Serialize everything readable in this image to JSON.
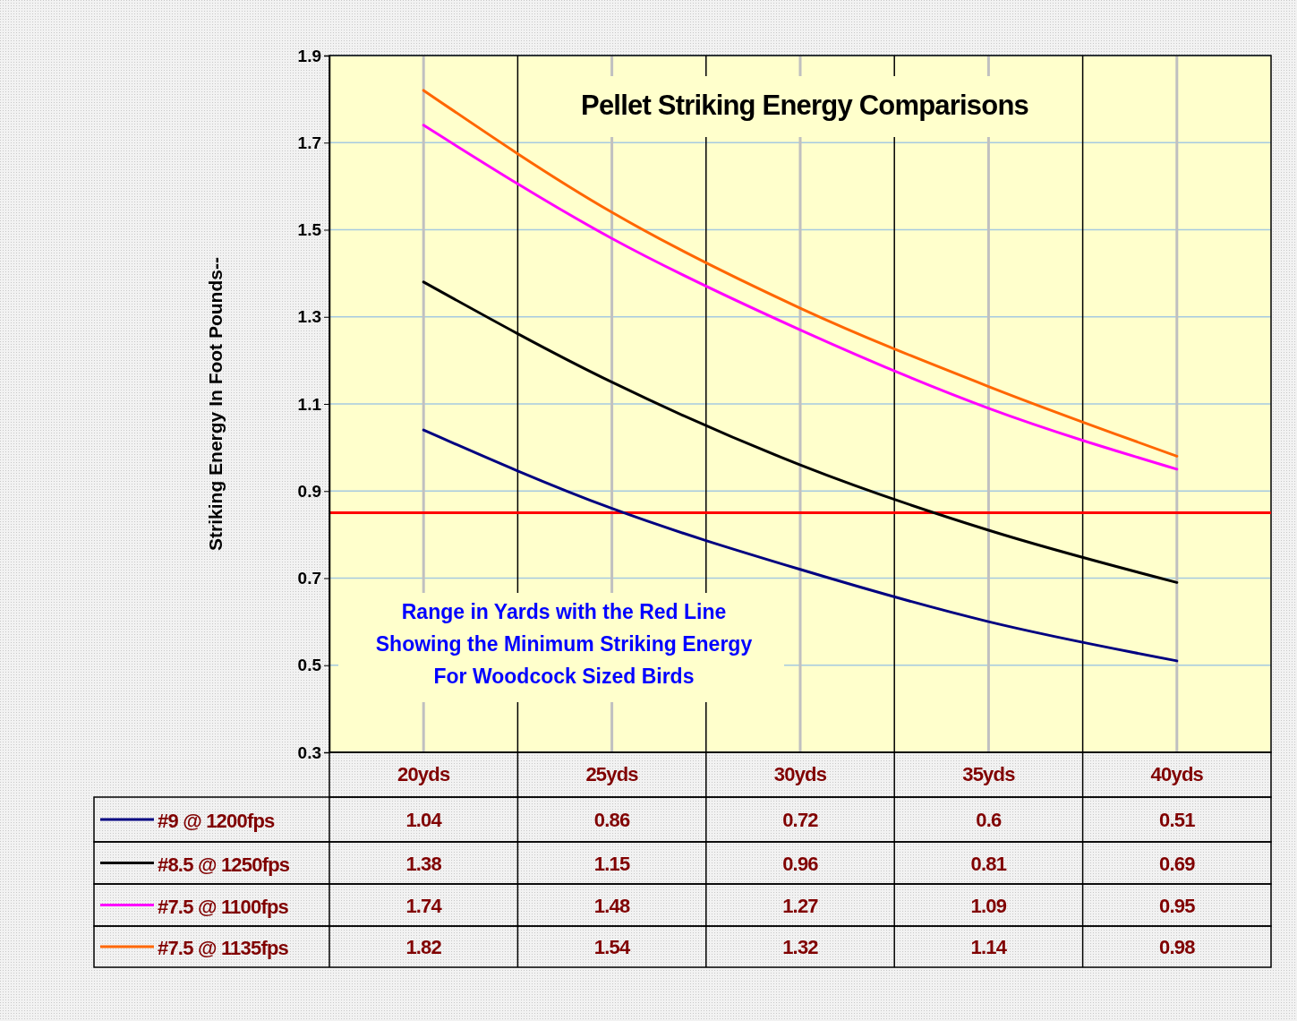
{
  "chart_data": {
    "type": "line",
    "title": "Pellet Striking Energy Comparisons",
    "ylabel": "Striking Energy In Foot Pounds--",
    "categories": [
      "20yds",
      "25yds",
      "30yds",
      "35yds",
      "40yds"
    ],
    "series": [
      {
        "name": "#9 @ 1200fps",
        "color": "#000080",
        "values": [
          1.04,
          0.86,
          0.72,
          0.6,
          0.51
        ]
      },
      {
        "name": "#8.5 @ 1250fps",
        "color": "#000000",
        "values": [
          1.38,
          1.15,
          0.96,
          0.81,
          0.69
        ]
      },
      {
        "name": "#7.5 @ 1100fps",
        "color": "#ff00ff",
        "values": [
          1.74,
          1.48,
          1.27,
          1.09,
          0.95
        ]
      },
      {
        "name": "#7.5 @ 1135fps",
        "color": "#ff6600",
        "values": [
          1.82,
          1.54,
          1.32,
          1.14,
          0.98
        ]
      }
    ],
    "ylim": [
      0.3,
      1.9
    ],
    "yticks": [
      0.3,
      0.5,
      0.7,
      0.9,
      1.1,
      1.3,
      1.5,
      1.7,
      1.9
    ],
    "ref_lines": [
      {
        "axis": "y",
        "value": 0.85,
        "color": "#ff0000"
      }
    ],
    "annotations": [
      "Range in Yards with the Red Line\nShowing the Minimum Striking Energy\nFor Woodcock Sized Birds"
    ],
    "grid": true,
    "legend": "bottom",
    "data_labels": true,
    "marker": "none",
    "line_style": "solid"
  }
}
